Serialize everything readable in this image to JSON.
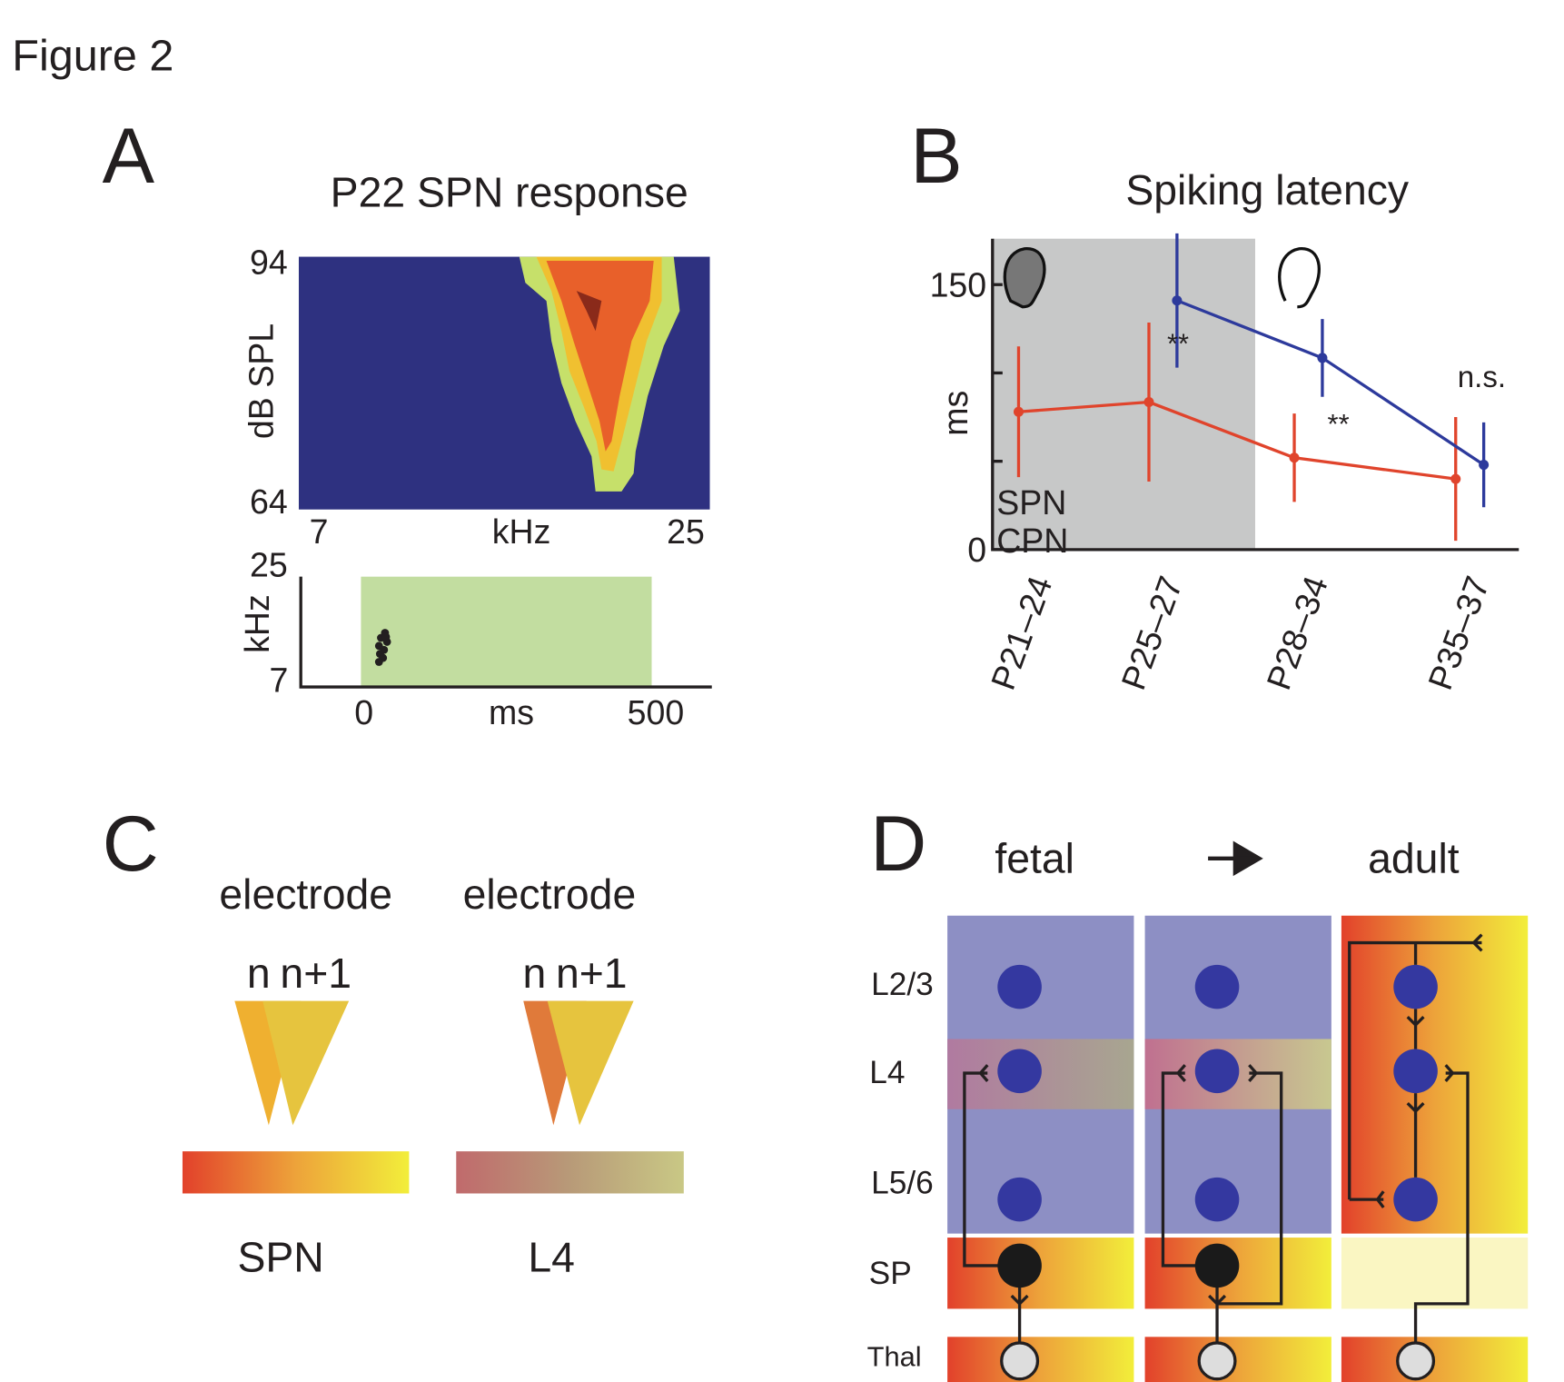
{
  "figure_title": "Figure 2",
  "panel_a": {
    "letter": "A",
    "title": "P22 SPN response",
    "heatmap": {
      "y_label": "dB SPL",
      "y_top": "94",
      "y_bottom": "64",
      "x_left": "7",
      "x_label": "kHz",
      "x_right": "25"
    },
    "raster": {
      "y_label": "kHz",
      "y_top": "25",
      "y_bottom": "7",
      "x_left": "0",
      "x_label": "ms",
      "x_right": "500"
    }
  },
  "chart_data": {
    "type": "line",
    "letter": "B",
    "title": "Spiking latency",
    "y_label": "ms",
    "categories": [
      "P21–24",
      "P25–27",
      "P28–34",
      "P35–37"
    ],
    "series": [
      {
        "name": "SPN",
        "color": "#e0442c",
        "values": [
          78,
          83.5,
          52,
          40
        ],
        "errors": [
          37,
          45,
          25,
          35
        ]
      },
      {
        "name": "CPN",
        "color": "#2d3a9c",
        "values": [
          null,
          141,
          108.5,
          48
        ],
        "errors": [
          null,
          38,
          22,
          24
        ]
      }
    ],
    "ylim": [
      0,
      176
    ],
    "yticks": [
      0,
      150
    ],
    "yminor_ticks": [
      50,
      100
    ],
    "annotations": [
      "**",
      "**",
      "n.s."
    ]
  },
  "panel_c": {
    "letter": "C",
    "columns": [
      {
        "heading": "electrode",
        "n": "n",
        "n1": "n+1",
        "label": "SPN"
      },
      {
        "heading": "electrode",
        "n": "n",
        "n1": "n+1",
        "label": "L4"
      }
    ]
  },
  "panel_d": {
    "letter": "D",
    "left": "fetal",
    "right": "adult",
    "layers": [
      "L2/3",
      "L4",
      "L5/6",
      "SP",
      "Thal"
    ]
  }
}
